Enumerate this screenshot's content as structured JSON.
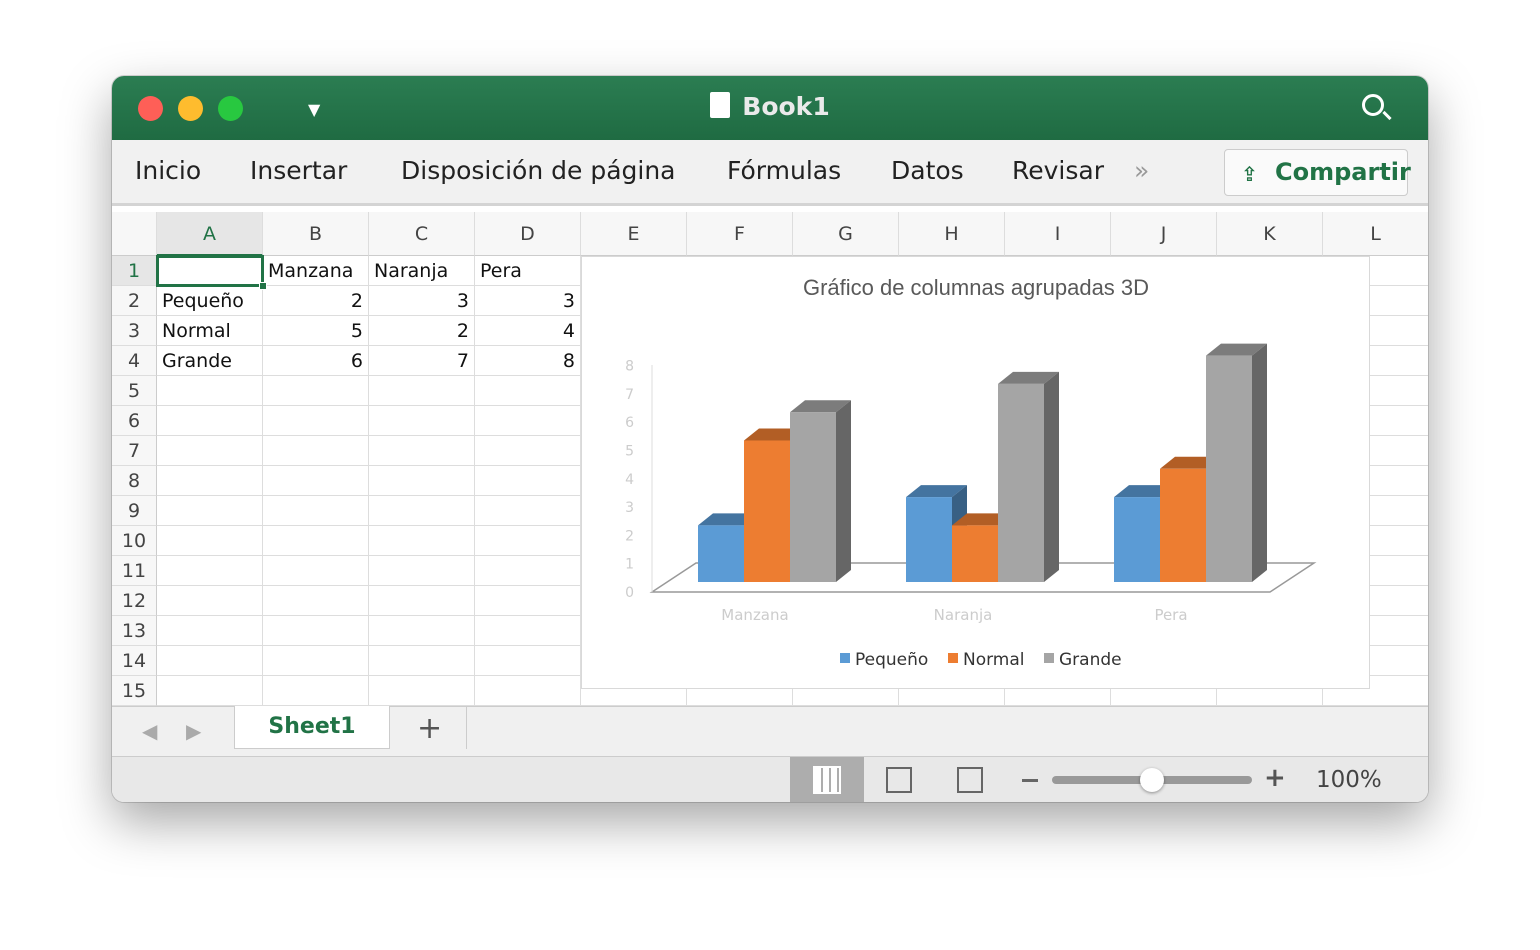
{
  "window": {
    "title": "Book1"
  },
  "ribbon": {
    "tabs": [
      "Inicio",
      "Insertar",
      "Disposición de página",
      "Fórmulas",
      "Datos",
      "Revisar"
    ],
    "more": "»",
    "share_label": "Compartir"
  },
  "columns": [
    "A",
    "B",
    "C",
    "D",
    "E",
    "F",
    "G",
    "H",
    "I",
    "J",
    "K",
    "L"
  ],
  "rows": [
    "1",
    "2",
    "3",
    "4",
    "5",
    "6",
    "7",
    "8",
    "9",
    "10",
    "11",
    "12",
    "13",
    "14",
    "15"
  ],
  "cells": [
    [
      "",
      "Manzana",
      "Naranja",
      "Pera"
    ],
    [
      "Pequeño",
      "2",
      "3",
      "3"
    ],
    [
      "Normal",
      "5",
      "2",
      "4"
    ],
    [
      "Grande",
      "6",
      "7",
      "8"
    ]
  ],
  "selected_cell": "A1",
  "chart_data": {
    "type": "bar",
    "title": "Gráfico de columnas agrupadas 3D",
    "categories": [
      "Manzana",
      "Naranja",
      "Pera"
    ],
    "series": [
      {
        "name": "Pequeño",
        "values": [
          2,
          3,
          3
        ],
        "color": "#5b9bd5"
      },
      {
        "name": "Normal",
        "values": [
          5,
          2,
          4
        ],
        "color": "#ed7d31"
      },
      {
        "name": "Grande",
        "values": [
          6,
          7,
          8
        ],
        "color": "#a5a5a5"
      }
    ],
    "yticks": [
      "0",
      "1",
      "2",
      "3",
      "4",
      "5",
      "6",
      "7",
      "8"
    ],
    "ylim": [
      0,
      8
    ],
    "legend": "bottom",
    "style": "3d-clustered"
  },
  "sheets": {
    "tabs": [
      "Sheet1"
    ],
    "add": "+"
  },
  "status": {
    "zoom": "100%",
    "zoom_level": 0.5
  },
  "colors": {
    "accent": "#217346"
  }
}
